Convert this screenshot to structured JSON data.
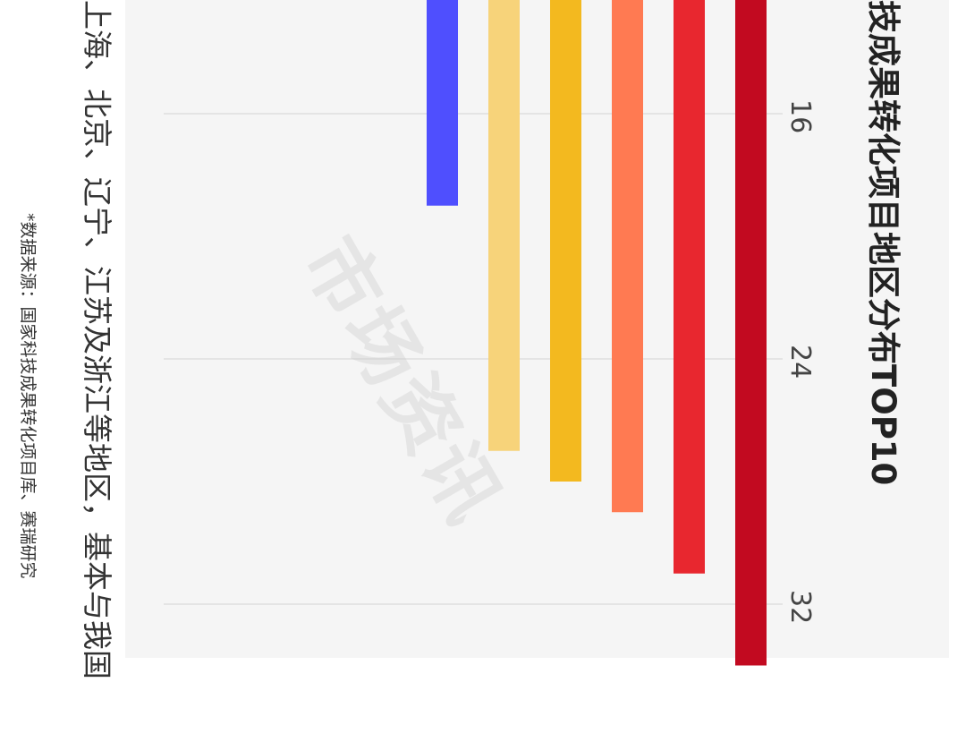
{
  "chart_data": {
    "type": "bar",
    "orientation": "rotated-90",
    "title": "技成果转化项目地区分布TOP10",
    "caption": "上海、北京、辽宁、江苏及浙江等地区，基本与我国",
    "source": "*数据来源：国家科技成果转化项目库、赛瑞研究",
    "watermark": "市场资讯",
    "axis": {
      "ticks": [
        16,
        24,
        32
      ],
      "tick_labels": [
        "16",
        "24",
        "32"
      ],
      "range": [
        8,
        34
      ]
    },
    "grid": true,
    "series": [
      {
        "values": [
          34,
          31,
          29,
          28,
          27,
          19
        ],
        "colors": [
          "#c20a20",
          "#e8272f",
          "#ff7a52",
          "#f3b91f",
          "#f7d37a",
          "#4f4ffe"
        ]
      }
    ]
  }
}
